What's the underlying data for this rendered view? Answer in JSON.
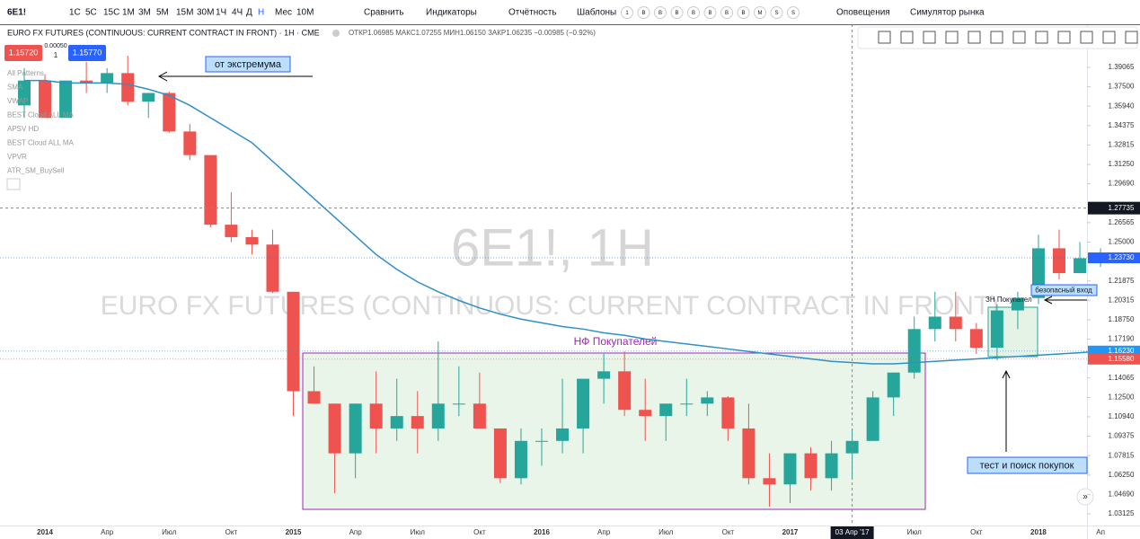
{
  "toolbar": {
    "symbol": "6E1!",
    "intervals": [
      "1С",
      "5С",
      "15С",
      "1М",
      "3М",
      "5М",
      "15М",
      "30М",
      "1Ч",
      "4Ч",
      "Д",
      "Н",
      "Мес",
      "10М"
    ],
    "compare": "Сравнить",
    "indicators": "Индикаторы",
    "reports": "Отчётность",
    "templates": "Шаблоны",
    "badges": [
      "1",
      "B",
      "B",
      "B",
      "B",
      "B",
      "B",
      "B",
      "M",
      "S",
      "S"
    ],
    "alerts": "Оповещения",
    "simulator": "Симулятор рынка"
  },
  "legend": {
    "title": "EURO FX FUTURES (CONTINUOUS: CURRENT CONTRACT IN FRONT) · 1H · CME",
    "ohlc": "ОТКР1.06985 МАКС1.07255 МИН1.06150 ЗАКР1.06235 −0.00985 (−0.92%)",
    "sell": "1.15720",
    "spread": "0.00050",
    "qty": "1",
    "buy": "1.15770",
    "studies": [
      "All Patterns",
      "SMA",
      "VWAP",
      "BEST Cloud ALL MA",
      "APSV HD",
      "BEST Cloud ALL MA",
      "VPVR",
      "ATR_SM_BuySell"
    ]
  },
  "watermark": {
    "symbol": "6E1!, 1H",
    "name": "EURO FX FUTURES (CONTINUOUS: CURRENT CONTRACT IN FRONT)"
  },
  "drawings": {
    "extreme": "от экстремума",
    "zone": "НФ Покупателей",
    "zone2": "ЗН Покупател",
    "entry": "безопасный вход",
    "test": "тест и поиск покупок"
  },
  "chart_data": {
    "type": "candlestick",
    "up_color": "#26a69a",
    "down_color": "#ef5350",
    "categories": [
      null,
      "2014",
      null,
      null,
      "Апр",
      null,
      null,
      "Июл",
      null,
      null,
      "Окт",
      null,
      null,
      "2015",
      null,
      null,
      "Апр",
      null,
      null,
      "Июл",
      null,
      null,
      "Окт",
      null,
      null,
      "2016",
      null,
      null,
      "Апр",
      null,
      null,
      "Июл",
      null,
      null,
      "Окт",
      null,
      null,
      "2017",
      null,
      null,
      null,
      null,
      null,
      "Июл",
      null,
      null,
      "Окт",
      null,
      null,
      "2018",
      null,
      null,
      "Ап"
    ],
    "open": [
      1.36,
      1.38,
      1.35,
      1.38,
      1.378,
      1.386,
      1.363,
      1.37,
      1.339,
      1.32,
      1.264,
      1.254,
      1.248,
      1.21,
      1.13,
      1.12,
      1.08,
      1.12,
      1.1,
      1.11,
      1.1,
      1.12,
      1.12,
      1.1,
      1.06,
      1.09,
      1.09,
      1.1,
      1.14,
      1.146,
      1.115,
      1.11,
      1.12,
      1.12,
      1.125,
      1.1,
      1.06,
      1.055,
      1.08,
      1.06,
      1.08,
      1.09,
      1.125,
      1.145,
      1.18,
      1.19,
      1.18,
      1.165,
      1.195,
      1.205,
      1.245,
      1.225,
      1.237
    ],
    "high": [
      1.39,
      1.385,
      1.38,
      1.395,
      1.39,
      1.4,
      1.37,
      1.371,
      1.345,
      1.32,
      1.29,
      1.26,
      1.26,
      1.21,
      1.15,
      1.12,
      1.12,
      1.146,
      1.14,
      1.13,
      1.17,
      1.15,
      1.145,
      1.1,
      1.1,
      1.1,
      1.14,
      1.14,
      1.16,
      1.162,
      1.14,
      1.12,
      1.14,
      1.13,
      1.126,
      1.12,
      1.08,
      1.08,
      1.085,
      1.09,
      1.1,
      1.13,
      1.145,
      1.19,
      1.21,
      1.21,
      1.185,
      1.2,
      1.21,
      1.256,
      1.26,
      1.25,
      1.245
    ],
    "low": [
      1.35,
      1.354,
      1.35,
      1.37,
      1.37,
      1.36,
      1.35,
      1.338,
      1.316,
      1.262,
      1.25,
      1.24,
      1.209,
      1.11,
      1.12,
      1.048,
      1.06,
      1.08,
      1.09,
      1.08,
      1.09,
      1.11,
      1.1,
      1.056,
      1.055,
      1.07,
      1.08,
      1.08,
      1.12,
      1.11,
      1.09,
      1.09,
      1.11,
      1.11,
      1.09,
      1.055,
      1.037,
      1.04,
      1.05,
      1.05,
      1.06,
      1.09,
      1.11,
      1.14,
      1.17,
      1.17,
      1.16,
      1.155,
      1.18,
      1.2,
      1.22,
      1.225,
      1.23
    ],
    "close": [
      1.38,
      1.35,
      1.38,
      1.378,
      1.386,
      1.363,
      1.37,
      1.339,
      1.32,
      1.264,
      1.254,
      1.248,
      1.21,
      1.13,
      1.12,
      1.08,
      1.12,
      1.1,
      1.11,
      1.1,
      1.12,
      1.12,
      1.1,
      1.06,
      1.09,
      1.09,
      1.1,
      1.14,
      1.146,
      1.115,
      1.11,
      1.12,
      1.12,
      1.125,
      1.1,
      1.06,
      1.055,
      1.08,
      1.06,
      1.08,
      1.09,
      1.125,
      1.145,
      1.18,
      1.19,
      1.18,
      1.165,
      1.195,
      1.205,
      1.245,
      1.225,
      1.237,
      1.2373
    ],
    "ma": {
      "color": "#2e8fc9",
      "values": [
        1.38,
        1.38,
        1.378,
        1.378,
        1.378,
        1.377,
        1.373,
        1.368,
        1.36,
        1.35,
        1.34,
        1.33,
        1.315,
        1.3,
        1.285,
        1.27,
        1.255,
        1.24,
        1.228,
        1.218,
        1.21,
        1.203,
        1.197,
        1.192,
        1.188,
        1.185,
        1.182,
        1.18,
        1.177,
        1.175,
        1.172,
        1.17,
        1.168,
        1.166,
        1.164,
        1.162,
        1.16,
        1.158,
        1.156,
        1.154,
        1.153,
        1.152,
        1.152,
        1.153,
        1.154,
        1.155,
        1.156,
        1.157,
        1.158,
        1.159,
        1.16,
        1.161,
        1.1623
      ]
    },
    "ylim": [
      1.0219,
      1.4253
    ],
    "yticks": [
      1.39065,
      {
        "value": 1.375,
        "label": "1.37500"
      },
      {
        "value": 1.3594,
        "label": "1.35940"
      },
      1.34375,
      1.32815,
      {
        "value": 1.3125,
        "label": "1.31250"
      },
      {
        "value": 1.2969,
        "label": "1.29690"
      },
      1.26565,
      {
        "value": 1.25,
        "label": "1.25000"
      },
      1.21875,
      1.20315,
      {
        "value": 1.1875,
        "label": "1.18750"
      },
      {
        "value": 1.1719,
        "label": "1.17190"
      },
      1.14065,
      {
        "value": 1.125,
        "label": "1.12500"
      },
      {
        "value": 1.1094,
        "label": "1.10940"
      },
      1.09375,
      1.07815,
      {
        "value": 1.0625,
        "label": "1.06250"
      },
      {
        "value": 1.0469,
        "label": "1.04690"
      },
      1.03125
    ],
    "price_markers": [
      {
        "value": 1.2373,
        "label": "1.23730",
        "color": "#2962ff"
      },
      {
        "value": 1.1623,
        "label": "1.16230",
        "color": "#2196f3"
      },
      {
        "value": 1.1558,
        "label": "1.15580",
        "color": "#ef5350"
      }
    ],
    "crosshair": {
      "label": "03 Апр '17",
      "price": 1.27735
    }
  }
}
